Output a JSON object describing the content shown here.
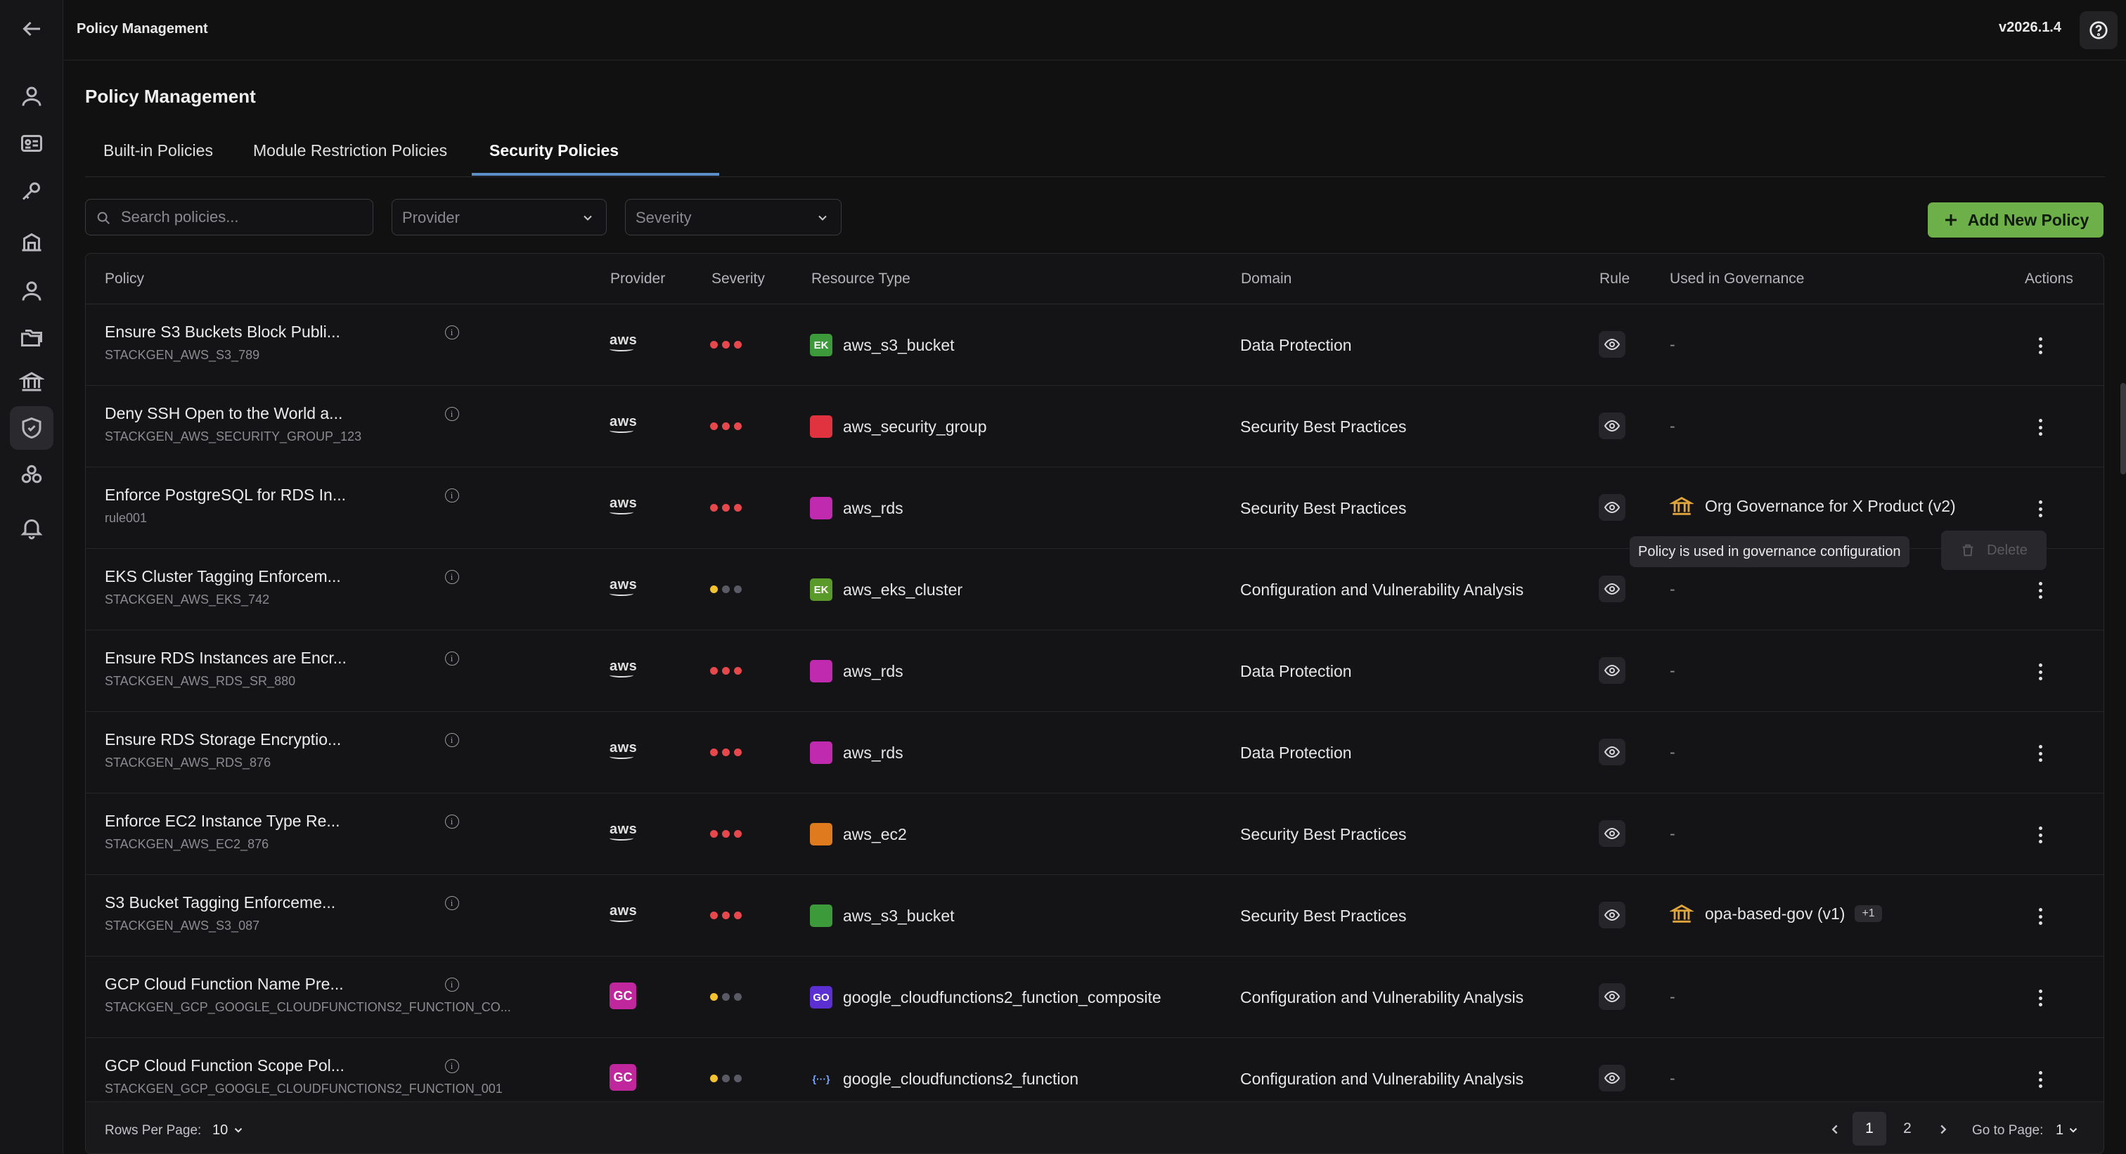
{
  "header": {
    "breadcrumb": "Policy Management",
    "version": "v2026.1.4"
  },
  "page": {
    "title": "Policy Management"
  },
  "tabs": [
    {
      "label": "Built-in Policies"
    },
    {
      "label": "Module Restriction Policies"
    },
    {
      "label": "Security Policies",
      "active": true
    }
  ],
  "filters": {
    "search_placeholder": "Search policies...",
    "provider_placeholder": "Provider",
    "severity_placeholder": "Severity",
    "add_button": "Add New Policy"
  },
  "table": {
    "columns": [
      "Policy",
      "Provider",
      "Severity",
      "Resource Type",
      "Domain",
      "Rule",
      "Used in Governance",
      "Actions"
    ],
    "rows": [
      {
        "name": "Ensure S3 Buckets Block Publi...",
        "id": "STACKGEN_AWS_S3_789",
        "provider": "aws",
        "severity": "high",
        "resource_icon": "EK",
        "resource_color": "#3d9a3a",
        "resource": "aws_s3_bucket",
        "domain": "Data Protection",
        "governance": "-"
      },
      {
        "name": "Deny SSH Open to the World a...",
        "id": "STACKGEN_AWS_SECURITY_GROUP_123",
        "provider": "aws",
        "severity": "high",
        "resource_color": "#e0333f",
        "resource": "aws_security_group",
        "domain": "Security Best Practices",
        "governance": "-"
      },
      {
        "name": "Enforce PostgreSQL for RDS In...",
        "id": "rule001",
        "provider": "aws",
        "severity": "high",
        "resource_color": "#c02aae",
        "resource": "aws_rds",
        "domain": "Security Best Practices",
        "governance": "Org Governance for X Product (v2)"
      },
      {
        "name": "EKS Cluster Tagging Enforcem...",
        "id": "STACKGEN_AWS_EKS_742",
        "provider": "aws",
        "severity": "low",
        "resource_icon": "EK",
        "resource_color": "#5a9a2a",
        "resource": "aws_eks_cluster",
        "domain": "Configuration and Vulnerability Analysis",
        "governance": "-"
      },
      {
        "name": "Ensure RDS Instances are Encr...",
        "id": "STACKGEN_AWS_RDS_SR_880",
        "provider": "aws",
        "severity": "high",
        "resource_color": "#c02aae",
        "resource": "aws_rds",
        "domain": "Data Protection",
        "governance": "-"
      },
      {
        "name": "Ensure RDS Storage Encryptio...",
        "id": "STACKGEN_AWS_RDS_876",
        "provider": "aws",
        "severity": "high",
        "resource_color": "#c02aae",
        "resource": "aws_rds",
        "domain": "Data Protection",
        "governance": "-"
      },
      {
        "name": "Enforce EC2 Instance Type Re...",
        "id": "STACKGEN_AWS_EC2_876",
        "provider": "aws",
        "severity": "high",
        "resource_color": "#e07a1f",
        "resource": "aws_ec2",
        "domain": "Security Best Practices",
        "governance": "-"
      },
      {
        "name": "S3 Bucket Tagging Enforceme...",
        "id": "STACKGEN_AWS_S3_087",
        "provider": "aws",
        "severity": "high",
        "resource_color": "#3d9a3a",
        "resource": "aws_s3_bucket",
        "domain": "Security Best Practices",
        "governance": "opa-based-gov (v1)",
        "governance_more": "+1"
      },
      {
        "name": "GCP Cloud Function Name Pre...",
        "id": "STACKGEN_GCP_GOOGLE_CLOUDFUNCTIONS2_FUNCTION_CO...",
        "provider": "GC",
        "severity": "low",
        "resource_icon": "GO",
        "resource_color": "#5b2fd1",
        "resource": "google_cloudfunctions2_function_composite",
        "domain": "Configuration and Vulnerability Analysis",
        "governance": "-"
      },
      {
        "name": "GCP Cloud Function Scope Pol...",
        "id": "STACKGEN_GCP_GOOGLE_CLOUDFUNCTIONS2_FUNCTION_001",
        "provider": "GC",
        "severity": "low",
        "resource_icon": "{···}",
        "resource_color": "transparent",
        "resource": "google_cloudfunctions2_function",
        "domain": "Configuration and Vulnerability Analysis",
        "governance": "-"
      }
    ]
  },
  "tooltip": {
    "text": "Policy is used in governance configuration",
    "delete_label": "Delete"
  },
  "pagination": {
    "rows_per_page_label": "Rows Per Page:",
    "rows_per_page": "10",
    "pages": [
      "1",
      "2"
    ],
    "current_page": "1",
    "goto_label": "Go to Page:",
    "goto_value": "1"
  },
  "colors": {
    "accent": "#6db04a",
    "severity_high": "#e5484d",
    "severity_low_active": "#f2c230",
    "severity_inactive": "#5a5a66",
    "tab_underline": "#5a8fc8"
  }
}
